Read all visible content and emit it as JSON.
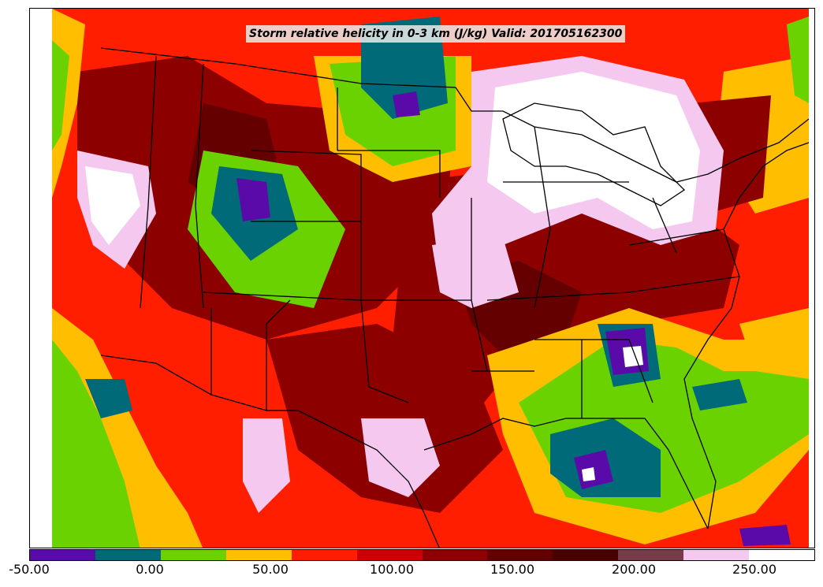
{
  "title": "Storm relative helicity in 0-3 km (J/kg) Valid: 201705162300",
  "colorbar": {
    "labels": [
      "-50.00",
      "0.00",
      "50.00",
      "100.00",
      "150.00",
      "200.00",
      "250.00"
    ],
    "colors": [
      "#5a0aa8",
      "#006a78",
      "#6ad200",
      "#ffbe00",
      "#ff1e00",
      "#cd0000",
      "#8c0000",
      "#640000",
      "#4a0000",
      "#7a3a4a",
      "#f5c8f0",
      "#ffffff"
    ]
  },
  "palette": {
    "purple": "#5a0aa8",
    "teal": "#006a78",
    "green": "#6ad200",
    "orange": "#ffbe00",
    "red": "#ff1e00",
    "crimson": "#cd0000",
    "darkred": "#8c0000",
    "maroon": "#640000",
    "mauve": "#7a3a4a",
    "pink": "#f5c8f0",
    "white": "#ffffff"
  }
}
